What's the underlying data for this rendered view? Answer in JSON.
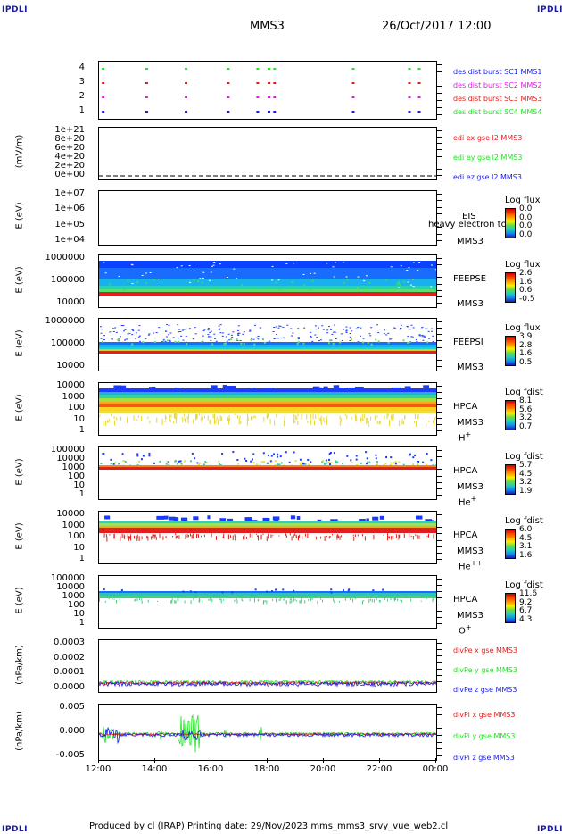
{
  "corners": {
    "tl": "IPDLI",
    "tr": "IPDLI",
    "bl": "IPDLI",
    "br": "IPDLI"
  },
  "header": {
    "spacecraft": "MMS3",
    "date": "26/Oct/2017 12:00"
  },
  "footer": {
    "text": "Produced by cl (IRAP)   Printing date: 29/Nov/2023   mms_mms3_srvy_vue_web2.cl"
  },
  "colors": {
    "blue": "#1a1ae6",
    "magenta": "#e61ae6",
    "red": "#e61a1a",
    "green": "#1ae61a"
  },
  "chart_data": {
    "x_axis": {
      "ticks": [
        "12:00",
        "14:00",
        "16:00",
        "18:00",
        "20:00",
        "22:00",
        "00:00"
      ],
      "range": [
        "12:00",
        "00:00"
      ]
    },
    "panels": [
      {
        "id": "burst",
        "type": "scatter",
        "ytick_labels": [
          "4",
          "3",
          "2",
          "1"
        ],
        "legend": [
          {
            "text": "des dist burst SC1 MMS1",
            "color": "#1a1ae6"
          },
          {
            "text": "des dist burst SC2 MMS2",
            "color": "#e61ae6"
          },
          {
            "text": "des dist burst SC3 MMS3",
            "color": "#e61a1a"
          },
          {
            "text": "des dist burst SC4 MMS4",
            "color": "#1ae61a"
          }
        ],
        "burst_hours": [
          12.1,
          13.65,
          15.05,
          16.55,
          17.6,
          18.0,
          18.2,
          21.0,
          23.0,
          23.35
        ]
      },
      {
        "id": "edi",
        "type": "line",
        "ylabel": "(mV/m)",
        "ytick_labels": [
          "1e+21",
          "8e+20",
          "6e+20",
          "4e+20",
          "2e+20",
          "0e+00"
        ],
        "legend": [
          {
            "text": "edi ex gse l2 MMS3",
            "color": "#e61a1a"
          },
          {
            "text": "edi ey gse l2 MMS3",
            "color": "#1ae61a"
          },
          {
            "text": "edi ez gse l2 MMS3",
            "color": "#1a1ae6"
          }
        ]
      },
      {
        "id": "eis",
        "type": "heatmap",
        "ylabel": "E (eV)",
        "ytick_labels": [
          "1e+07",
          "1e+06",
          "1e+05",
          "1e+04"
        ],
        "labels": [
          "EIS",
          "MMS3"
        ],
        "overlay": "heavy electron to",
        "cbar_title": "Log flux",
        "cbar_ticks": [
          "0.0",
          "0.0",
          "0.0",
          "0.0"
        ]
      },
      {
        "id": "feepse",
        "type": "heatmap",
        "ylabel": "E (eV)",
        "ytick_labels": [
          "1000000",
          "100000",
          "10000"
        ],
        "labels": [
          "FEEPSE",
          "MMS3"
        ],
        "cbar_title": "Log flux",
        "cbar_ticks": [
          "2.6",
          "1.6",
          "0.6",
          "-0.5"
        ]
      },
      {
        "id": "feepsi",
        "type": "heatmap",
        "ylabel": "E (eV)",
        "ytick_labels": [
          "1000000",
          "100000",
          "10000"
        ],
        "labels": [
          "FEEPSI",
          "MMS3"
        ],
        "cbar_title": "Log flux",
        "cbar_ticks": [
          "3.9",
          "2.8",
          "1.6",
          "0.5"
        ]
      },
      {
        "id": "hpca_h",
        "type": "heatmap",
        "ylabel": "E (eV)",
        "ytick_labels": [
          "10000",
          "1000",
          "100",
          "10",
          "1"
        ],
        "labels": [
          "HPCA",
          "MMS3"
        ],
        "species": "H",
        "charge": "+",
        "cbar_title": "Log fdist",
        "cbar_ticks": [
          "8.1",
          "5.6",
          "3.2",
          "0.7"
        ]
      },
      {
        "id": "hpca_he",
        "type": "heatmap",
        "ylabel": "E (eV)",
        "ytick_labels": [
          "100000",
          "10000",
          "1000",
          "100",
          "10",
          "1"
        ],
        "labels": [
          "HPCA",
          "MMS3"
        ],
        "species": "He",
        "charge": "+",
        "cbar_title": "Log fdist",
        "cbar_ticks": [
          "5.7",
          "4.5",
          "3.2",
          "1.9"
        ]
      },
      {
        "id": "hpca_hepp",
        "type": "heatmap",
        "ylabel": "E (eV)",
        "ytick_labels": [
          "10000",
          "1000",
          "100",
          "10",
          "1"
        ],
        "labels": [
          "HPCA",
          "MMS3"
        ],
        "species": "He",
        "charge": "++",
        "cbar_title": "Log fdist",
        "cbar_ticks": [
          "6.0",
          "4.5",
          "3.1",
          "1.6"
        ]
      },
      {
        "id": "hpca_o",
        "type": "heatmap",
        "ylabel": "E (eV)",
        "ytick_labels": [
          "100000",
          "10000",
          "1000",
          "100",
          "10",
          "1"
        ],
        "labels": [
          "HPCA",
          "MMS3"
        ],
        "species": "O",
        "charge": "+",
        "cbar_title": "Log fdist",
        "cbar_ticks": [
          "11.6",
          "9.2",
          "6.7",
          "4.3"
        ]
      },
      {
        "id": "divpe",
        "type": "line",
        "ylabel": "(nPa/km)",
        "ytick_labels": [
          "0.0003",
          "0.0002",
          "0.0001",
          "0.0000"
        ],
        "legend": [
          {
            "text": "divPe x gse MMS3",
            "color": "#e61a1a"
          },
          {
            "text": "divPe y gse MMS3",
            "color": "#1ae61a"
          },
          {
            "text": "divPe z gse MMS3",
            "color": "#1a1ae6"
          }
        ]
      },
      {
        "id": "divpi",
        "type": "line",
        "ylabel": "(nPa/km)",
        "ytick_labels": [
          "0.005",
          "0.000",
          "-0.005"
        ],
        "legend": [
          {
            "text": "divPi x gse MMS3",
            "color": "#e61a1a"
          },
          {
            "text": "divPi y gse MMS3",
            "color": "#1ae61a"
          },
          {
            "text": "divPi z gse MMS3",
            "color": "#1a1ae6"
          }
        ]
      }
    ]
  }
}
